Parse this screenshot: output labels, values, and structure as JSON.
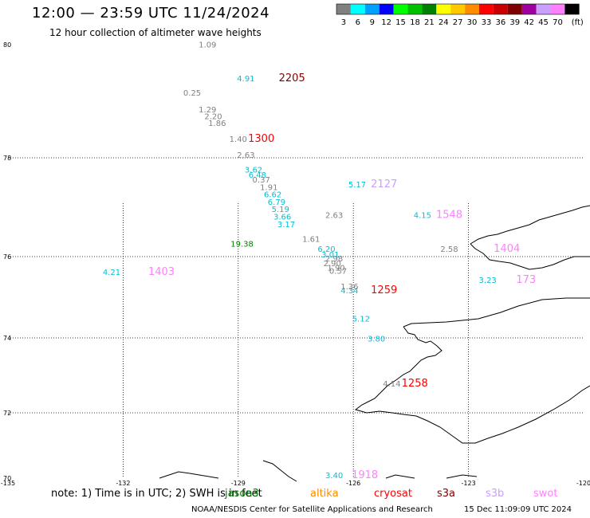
{
  "header": {
    "title": "12:00 — 23:59 UTC 11/24/2024",
    "subtitle": "12 hour collection of altimeter wave heights"
  },
  "color_scale": {
    "unit": "(ft)",
    "bins": [
      {
        "label": "3",
        "color": "#808080"
      },
      {
        "label": "6",
        "color": "#00ffff"
      },
      {
        "label": "9",
        "color": "#00a0ff"
      },
      {
        "label": "12",
        "color": "#0000ff"
      },
      {
        "label": "15",
        "color": "#00ff00"
      },
      {
        "label": "18",
        "color": "#00c000"
      },
      {
        "label": "21",
        "color": "#008000"
      },
      {
        "label": "24",
        "color": "#ffff00"
      },
      {
        "label": "27",
        "color": "#ffc800"
      },
      {
        "label": "30",
        "color": "#ff8c00"
      },
      {
        "label": "33",
        "color": "#ff0000"
      },
      {
        "label": "36",
        "color": "#c80000"
      },
      {
        "label": "39",
        "color": "#800000"
      },
      {
        "label": "42",
        "color": "#a000a0"
      },
      {
        "label": "45",
        "color": "#c8a0ff"
      },
      {
        "label": "70",
        "color": "#ff80ff"
      },
      {
        "label": "",
        "color": "#000000"
      }
    ]
  },
  "axes": {
    "lat_ticks": [
      {
        "lat": 80,
        "label": "80"
      },
      {
        "lat": 78,
        "label": "78"
      },
      {
        "lat": 76,
        "label": "76"
      },
      {
        "lat": 74,
        "label": "74"
      },
      {
        "lat": 72,
        "label": "72"
      },
      {
        "lat": 70,
        "label": "70"
      }
    ],
    "lon_ticks": [
      {
        "lon": -135,
        "label": "-135"
      },
      {
        "lon": -132,
        "label": "-132"
      },
      {
        "lon": -129,
        "label": "-129"
      },
      {
        "lon": -126,
        "label": "-126"
      },
      {
        "lon": -123,
        "label": "-123"
      },
      {
        "lon": -120,
        "label": "-120"
      }
    ]
  },
  "wave_heights": [
    {
      "lon": -129.8,
      "lat": 79.95,
      "swh": "1.09",
      "color": "#808080"
    },
    {
      "lon": -130.2,
      "lat": 79.1,
      "swh": "0.25",
      "color": "#808080"
    },
    {
      "lon": -129.8,
      "lat": 78.8,
      "swh": "1.29",
      "color": "#808080"
    },
    {
      "lon": -129.65,
      "lat": 78.68,
      "swh": "2.20",
      "color": "#808080"
    },
    {
      "lon": -129.55,
      "lat": 78.56,
      "swh": "1.86",
      "color": "#808080"
    },
    {
      "lon": -129.0,
      "lat": 78.28,
      "swh": "1.40",
      "color": "#808080"
    },
    {
      "lon": -128.8,
      "lat": 78.0,
      "swh": "2.63",
      "color": "#808080"
    },
    {
      "lon": -128.6,
      "lat": 77.7,
      "swh": "3.62",
      "color": "#00c0d8"
    },
    {
      "lon": -128.5,
      "lat": 77.6,
      "swh": "6.48",
      "color": "#00c0d8"
    },
    {
      "lon": -128.4,
      "lat": 77.5,
      "swh": "0.37",
      "color": "#808080"
    },
    {
      "lon": -128.2,
      "lat": 77.35,
      "swh": "1.91",
      "color": "#808080"
    },
    {
      "lon": -128.1,
      "lat": 77.2,
      "swh": "6.62",
      "color": "#00c0d8"
    },
    {
      "lon": -128.0,
      "lat": 77.05,
      "swh": "6.79",
      "color": "#00c0d8"
    },
    {
      "lon": -127.9,
      "lat": 76.9,
      "swh": "5.19",
      "color": "#00c0d8"
    },
    {
      "lon": -127.85,
      "lat": 76.75,
      "swh": "3.66",
      "color": "#00c0d8"
    },
    {
      "lon": -127.75,
      "lat": 76.6,
      "swh": "3.17",
      "color": "#00c0d8"
    },
    {
      "lon": -126.5,
      "lat": 76.78,
      "swh": "2.63",
      "color": "#808080"
    },
    {
      "lon": -125.9,
      "lat": 77.4,
      "swh": "5.17",
      "color": "#00c0d8"
    },
    {
      "lon": -128.8,
      "lat": 79.35,
      "swh": "4.91",
      "color": "#00c0d8"
    },
    {
      "lon": -124.2,
      "lat": 76.78,
      "swh": "4.15",
      "color": "#00c0d8"
    },
    {
      "lon": -127.1,
      "lat": 76.3,
      "swh": "1.61",
      "color": "#808080"
    },
    {
      "lon": -128.9,
      "lat": 76.2,
      "swh": "19.38",
      "color": "#008000"
    },
    {
      "lon": -132.3,
      "lat": 75.55,
      "swh": "4.21",
      "color": "#00c0d8"
    },
    {
      "lon": -126.7,
      "lat": 76.1,
      "swh": "6.20",
      "color": "#00c0d8"
    },
    {
      "lon": -126.6,
      "lat": 75.98,
      "swh": "3.01",
      "color": "#00c0d8"
    },
    {
      "lon": -126.5,
      "lat": 75.88,
      "swh": "2.98",
      "color": "#808080"
    },
    {
      "lon": -126.55,
      "lat": 75.76,
      "swh": "2.90",
      "color": "#808080"
    },
    {
      "lon": -126.45,
      "lat": 75.66,
      "swh": "1.90",
      "color": "#808080"
    },
    {
      "lon": -126.4,
      "lat": 75.58,
      "swh": "0.57",
      "color": "#808080"
    },
    {
      "lon": -126.1,
      "lat": 75.2,
      "swh": "1.36",
      "color": "#808080"
    },
    {
      "lon": -126.1,
      "lat": 75.1,
      "swh": "4.34",
      "color": "#00c0d8"
    },
    {
      "lon": -125.8,
      "lat": 74.4,
      "swh": "5.12",
      "color": "#00c0d8"
    },
    {
      "lon": -125.4,
      "lat": 73.9,
      "swh": "3.80",
      "color": "#00c0d8"
    },
    {
      "lon": -125.0,
      "lat": 72.7,
      "swh": "4.14",
      "color": "#808080"
    },
    {
      "lon": -123.5,
      "lat": 76.1,
      "swh": "2.58",
      "color": "#808080"
    },
    {
      "lon": -122.5,
      "lat": 75.35,
      "swh": "3.23",
      "color": "#00c0d8"
    },
    {
      "lon": -126.5,
      "lat": 69.85,
      "swh": "3.40",
      "color": "#00c0d8"
    }
  ],
  "satellite_passes": [
    {
      "lon": -127.6,
      "lat": 79.35,
      "id": "2205",
      "color": "#800000"
    },
    {
      "lon": -128.4,
      "lat": 78.28,
      "id": "1300",
      "color": "#ff0000"
    },
    {
      "lon": -125.2,
      "lat": 77.4,
      "id": "2127",
      "color": "#c8a0ff"
    },
    {
      "lon": -123.5,
      "lat": 76.78,
      "id": "1548",
      "color": "#ff80ff"
    },
    {
      "lon": -131.0,
      "lat": 75.55,
      "id": "1403",
      "color": "#ff80ff"
    },
    {
      "lon": -122.0,
      "lat": 76.1,
      "id": "1404",
      "color": "#ff80ff"
    },
    {
      "lon": -125.2,
      "lat": 75.1,
      "id": "1259",
      "color": "#ff0000"
    },
    {
      "lon": -124.4,
      "lat": 72.7,
      "id": "1258",
      "color": "#ff0000"
    },
    {
      "lon": -121.5,
      "lat": 75.35,
      "id": "173",
      "color": "#ff80ff"
    },
    {
      "lon": -125.7,
      "lat": 69.85,
      "id": "1918",
      "color": "#ff80ff"
    }
  ],
  "footer": {
    "note": "note: 1) Time is in UTC; 2) SWH is in feet",
    "missions": [
      {
        "name": "jason3",
        "color": "#008000"
      },
      {
        "name": "altika",
        "color": "#ff8c00"
      },
      {
        "name": "cryosat",
        "color": "#ff0000"
      },
      {
        "name": "s3a",
        "color": "#800000"
      },
      {
        "name": "s3b",
        "color": "#c8a0ff"
      },
      {
        "name": "swot",
        "color": "#ff80ff"
      }
    ],
    "credit": "NOAA/NESDIS Center for Satellite Applications and Research",
    "timestamp": "15 Dec 11:09:09 UTC 2024"
  }
}
